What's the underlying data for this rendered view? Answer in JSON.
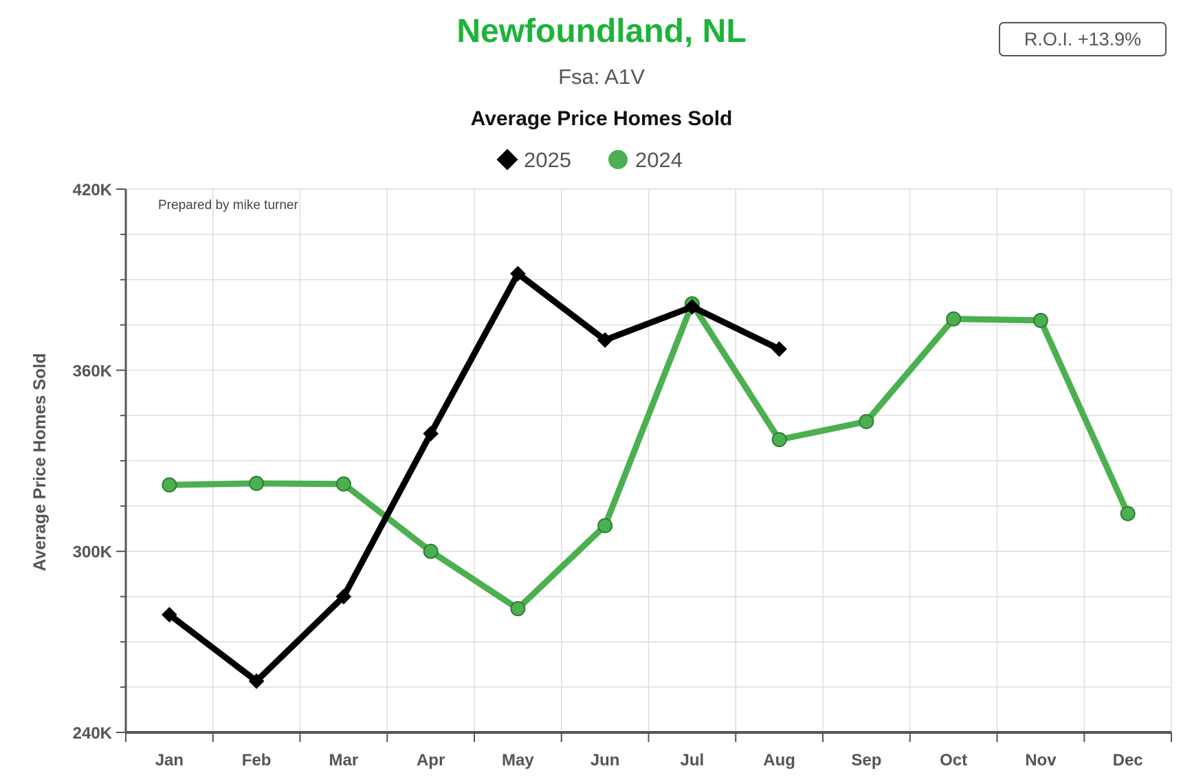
{
  "header": {
    "title": "Newfoundland, NL",
    "subtitle": "Fsa: A1V",
    "roi": "R.O.I. +13.9%"
  },
  "colors": {
    "title": "#1db33a",
    "series_2025": "#000000",
    "series_2024": "#4caf50",
    "series_2024_marker_stroke": "#2e7d32",
    "grid": "#dddddd",
    "axis": "#555555"
  },
  "chart_data": {
    "type": "line",
    "title": "Average Price Homes Sold",
    "ylabel": "Average Price Homes Sold",
    "xlabel": "",
    "note": "Prepared by mike turner",
    "categories": [
      "Jan",
      "Feb",
      "Mar",
      "Apr",
      "May",
      "Jun",
      "Jul",
      "Aug",
      "Sep",
      "Oct",
      "Nov",
      "Dec"
    ],
    "ylim": [
      240000,
      420000
    ],
    "yticks": [
      240000,
      300000,
      360000,
      420000
    ],
    "ytick_labels": [
      "240K",
      "300K",
      "360K",
      "420K"
    ],
    "grid": true,
    "legend_position": "top-center",
    "series": [
      {
        "name": "2025",
        "marker": "diamond",
        "values": [
          279000,
          257000,
          285000,
          339000,
          392000,
          370000,
          381000,
          367000,
          null,
          null,
          null,
          null
        ]
      },
      {
        "name": "2024",
        "marker": "circle",
        "values": [
          322000,
          322500,
          322300,
          300000,
          281000,
          308500,
          382000,
          337000,
          343000,
          377000,
          376500,
          312500
        ]
      }
    ]
  }
}
